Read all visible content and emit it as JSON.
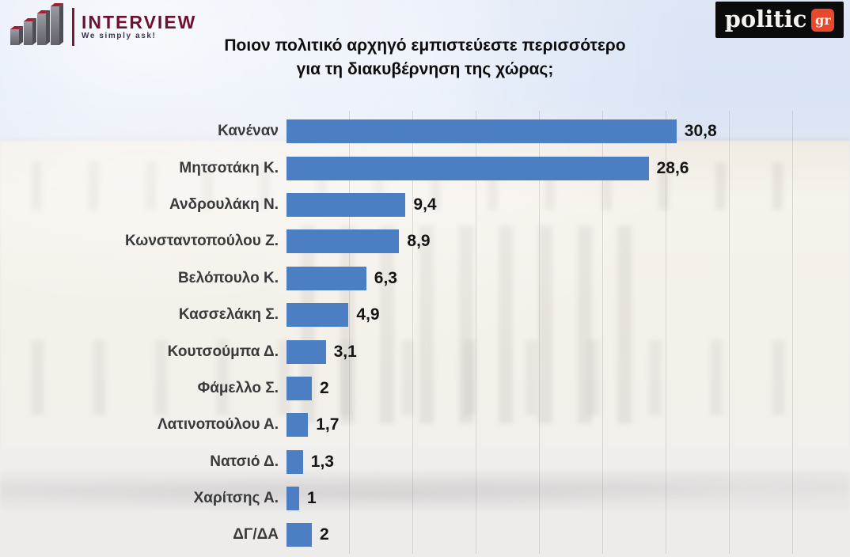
{
  "brand": {
    "interview": {
      "name": "INTERVIEW",
      "tagline": "We simply ask!",
      "accent_color": "#7e1637"
    },
    "politic": {
      "name": "politic",
      "suffix": "gr",
      "suffix_box_color": "#e8492c",
      "bg_color": "#0b0b0b"
    }
  },
  "title": {
    "line1": "Ποιον πολιτικό αρχηγό εμπιστεύεστε περισσότερο",
    "line2": "για τη διακυβέρνηση της χώρας;"
  },
  "chart_data": {
    "type": "bar",
    "orientation": "horizontal",
    "title": "Ποιον πολιτικό αρχηγό εμπιστεύεστε περισσότερο για τη διακυβέρνηση της χώρας;",
    "categories": [
      "Κανέναν",
      "Μητσοτάκη Κ.",
      "Ανδρουλάκη Ν.",
      "Κωνσταντοπούλου Ζ.",
      "Βελόπουλο Κ.",
      "Κασσελάκη Σ.",
      "Κουτσούμπα Δ.",
      "Φάμελλο Σ.",
      "Λατινοπούλου Α.",
      "Νατσιό Δ.",
      "Χαρίτσης Α.",
      "ΔΓ/ΔΑ"
    ],
    "values": [
      30.8,
      28.6,
      9.4,
      8.9,
      6.3,
      4.9,
      3.1,
      2,
      1.7,
      1.3,
      1,
      2
    ],
    "value_labels": [
      "30,8",
      "28,6",
      "9,4",
      "8,9",
      "6,3",
      "4,9",
      "3,1",
      "2",
      "1,7",
      "1,3",
      "1",
      "2"
    ],
    "bar_color": "#4b7ec2",
    "xlabel": "",
    "ylabel": "",
    "xlim": [
      0,
      35
    ],
    "gridline_step": 5,
    "grid": true,
    "legend": false,
    "value_decimal_separator": ","
  }
}
